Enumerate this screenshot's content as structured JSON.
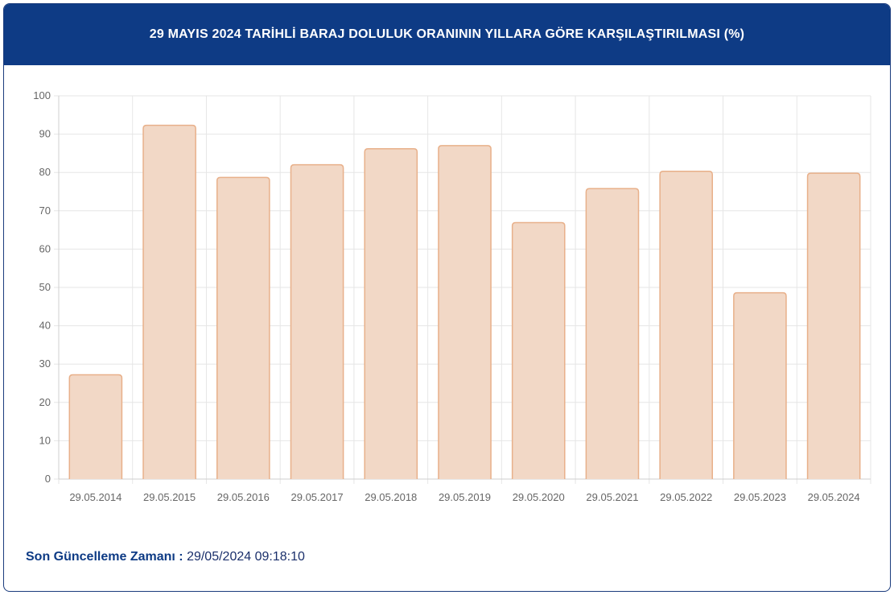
{
  "header": {
    "title": "29 MAYIS 2024 TARİHLİ BARAJ DOLULUK ORANININ YILLARA GÖRE KARŞILAŞTIRILMASI (%)"
  },
  "footer": {
    "label": "Son Güncelleme Zamanı :",
    "value": "29/05/2024 09:18:10"
  },
  "colors": {
    "header_bg": "#0e3b85",
    "bar_fill": "#f2d8c6",
    "bar_stroke": "#e8b08a",
    "grid": "#e6e6e6"
  },
  "chart_data": {
    "type": "bar",
    "title": "29 MAYIS 2024 TARİHLİ BARAJ DOLULUK ORANININ YILLARA GÖRE KARŞILAŞTIRILMASI (%)",
    "xlabel": "",
    "ylabel": "",
    "ylim": [
      0,
      100
    ],
    "yticks": [
      0,
      10,
      20,
      30,
      40,
      50,
      60,
      70,
      80,
      90,
      100
    ],
    "grid": true,
    "legend": "none",
    "categories": [
      "29.05.2014",
      "29.05.2015",
      "29.05.2016",
      "29.05.2017",
      "29.05.2018",
      "29.05.2019",
      "29.05.2020",
      "29.05.2021",
      "29.05.2022",
      "29.05.2023",
      "29.05.2024"
    ],
    "values": [
      27.2,
      92.3,
      78.7,
      82.0,
      86.2,
      87.0,
      66.9,
      75.8,
      80.3,
      48.6,
      79.8
    ]
  }
}
